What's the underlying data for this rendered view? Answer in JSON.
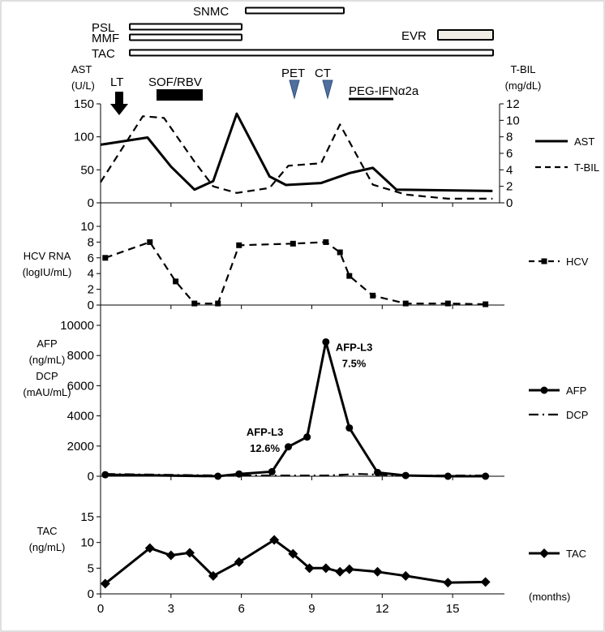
{
  "chart_data": {
    "type": "line",
    "x_unit": "(months)",
    "x_ticks": [
      0,
      3,
      6,
      9,
      12,
      15
    ],
    "xlim": [
      0,
      17
    ],
    "treatments": [
      {
        "name": "SNMC",
        "start": 6.1,
        "end": 10.1,
        "fill": "#ffffff"
      },
      {
        "name": "PSL",
        "start": 1.3,
        "end": 6.0,
        "fill": "#ffffff"
      },
      {
        "name": "MMF",
        "start": 1.3,
        "end": 6.0,
        "fill": "#ffffff"
      },
      {
        "name": "EVR",
        "start": 14.0,
        "end": 16.2,
        "fill": "#f0ede6"
      },
      {
        "name": "TAC",
        "start": 1.3,
        "end": 16.2,
        "fill": "#ffffff"
      }
    ],
    "markers": [
      {
        "label": "LT",
        "x": 0.8,
        "kind": "arrow"
      },
      {
        "label": "SOF/RBV",
        "x_start": 2.4,
        "x_end": 4.1,
        "kind": "bar"
      },
      {
        "label": "PET",
        "x": 8.0,
        "kind": "triangle"
      },
      {
        "label": "CT",
        "x": 9.4,
        "kind": "triangle"
      },
      {
        "label": "PEG-IFNα2a",
        "x_start": 10.4,
        "x_end": 12.0,
        "kind": "line"
      }
    ],
    "panels": [
      {
        "id": "ast-tbil",
        "ylabel_left": [
          "AST",
          "(U/L)"
        ],
        "ylabel_right": [
          "T-BIL",
          "(mg/dL)"
        ],
        "ylim_left": [
          0,
          150
        ],
        "yticks_left": [
          0,
          50,
          100,
          150
        ],
        "ylim_right": [
          0,
          12
        ],
        "yticks_right": [
          0,
          2,
          4,
          6,
          8,
          10,
          12
        ],
        "series": [
          {
            "name": "AST",
            "axis": "left",
            "style": "solid",
            "marker": "none",
            "x": [
              0,
              2.0,
              3.0,
              4.0,
              4.8,
              5.8,
              7.2,
              7.9,
              9.4,
              10.6,
              11.6,
              12.6,
              16.7
            ],
            "y": [
              88,
              99,
              55,
              20,
              33,
              135,
              40,
              27,
              30,
              45,
              53,
              20,
              18
            ]
          },
          {
            "name": "T-BIL",
            "axis": "right",
            "style": "dashed",
            "marker": "none",
            "x": [
              0,
              1.8,
              2.7,
              4.0,
              4.8,
              5.8,
              7.2,
              8.0,
              9.4,
              10.2,
              11.6,
              13.0,
              14.8,
              16.7
            ],
            "y": [
              2.5,
              10.5,
              10.3,
              5.0,
              2.0,
              1.2,
              1.8,
              4.5,
              4.8,
              9.5,
              2.2,
              1.0,
              0.5,
              0.5
            ]
          }
        ]
      },
      {
        "id": "hcv",
        "ylabel_left": [
          "HCV RNA",
          "(logIU/mL)"
        ],
        "ylim_left": [
          0,
          10
        ],
        "yticks_left": [
          0,
          2,
          4,
          6,
          8,
          10
        ],
        "series": [
          {
            "name": "HCV",
            "axis": "left",
            "style": "dashed",
            "marker": "square",
            "x": [
              0.2,
              2.1,
              3.2,
              4.0,
              5.0,
              5.9,
              8.2,
              9.6,
              10.2,
              10.6,
              11.6,
              13.0,
              14.8,
              16.4
            ],
            "y": [
              6.0,
              8.0,
              3.0,
              0.2,
              0.2,
              7.6,
              7.8,
              8.0,
              6.7,
              3.7,
              1.2,
              0.2,
              0.2,
              0.1
            ]
          }
        ]
      },
      {
        "id": "afp-dcp",
        "ylabel_left": [
          "AFP",
          "(ng/mL)",
          "DCP",
          "(mAU/mL)"
        ],
        "ylim_left": [
          0,
          10000
        ],
        "yticks_left": [
          0,
          2000,
          4000,
          6000,
          8000,
          10000
        ],
        "annotations": [
          {
            "lines": [
              "AFP-L3",
              "12.6%"
            ],
            "x": 7.0,
            "y": 2700
          },
          {
            "lines": [
              "AFP-L3",
              "7.5%"
            ],
            "x": 10.8,
            "y": 8300
          }
        ],
        "series": [
          {
            "name": "AFP",
            "axis": "left",
            "style": "solid",
            "marker": "circle",
            "x": [
              0.2,
              5.0,
              5.9,
              7.3,
              8.0,
              8.8,
              9.6,
              10.6,
              11.8,
              13.0,
              14.8,
              16.4
            ],
            "y": [
              100,
              0,
              150,
              300,
              1950,
              2600,
              8900,
              3200,
              250,
              50,
              0,
              0
            ]
          },
          {
            "name": "DCP",
            "axis": "left",
            "style": "dashdot",
            "marker": "none",
            "x": [
              0.2,
              5.0,
              7.3,
              9.6,
              11.0,
              13.0,
              16.4
            ],
            "y": [
              150,
              50,
              50,
              50,
              150,
              50,
              50
            ]
          }
        ]
      },
      {
        "id": "tac",
        "ylabel_left": [
          "TAC",
          "(ng/mL)"
        ],
        "ylim_left": [
          0,
          15
        ],
        "yticks_left": [
          0,
          5,
          10,
          15
        ],
        "series": [
          {
            "name": "TAC",
            "axis": "left",
            "style": "solid",
            "marker": "diamond",
            "x": [
              0.2,
              2.1,
              3.0,
              3.8,
              4.8,
              5.9,
              7.4,
              8.2,
              8.9,
              9.6,
              10.2,
              10.6,
              11.8,
              13.0,
              14.8,
              16.4
            ],
            "y": [
              2.0,
              8.9,
              7.5,
              8.0,
              3.5,
              6.2,
              10.5,
              7.8,
              5.0,
              5.0,
              4.3,
              4.8,
              4.3,
              3.5,
              2.2,
              2.3
            ]
          }
        ]
      }
    ]
  }
}
